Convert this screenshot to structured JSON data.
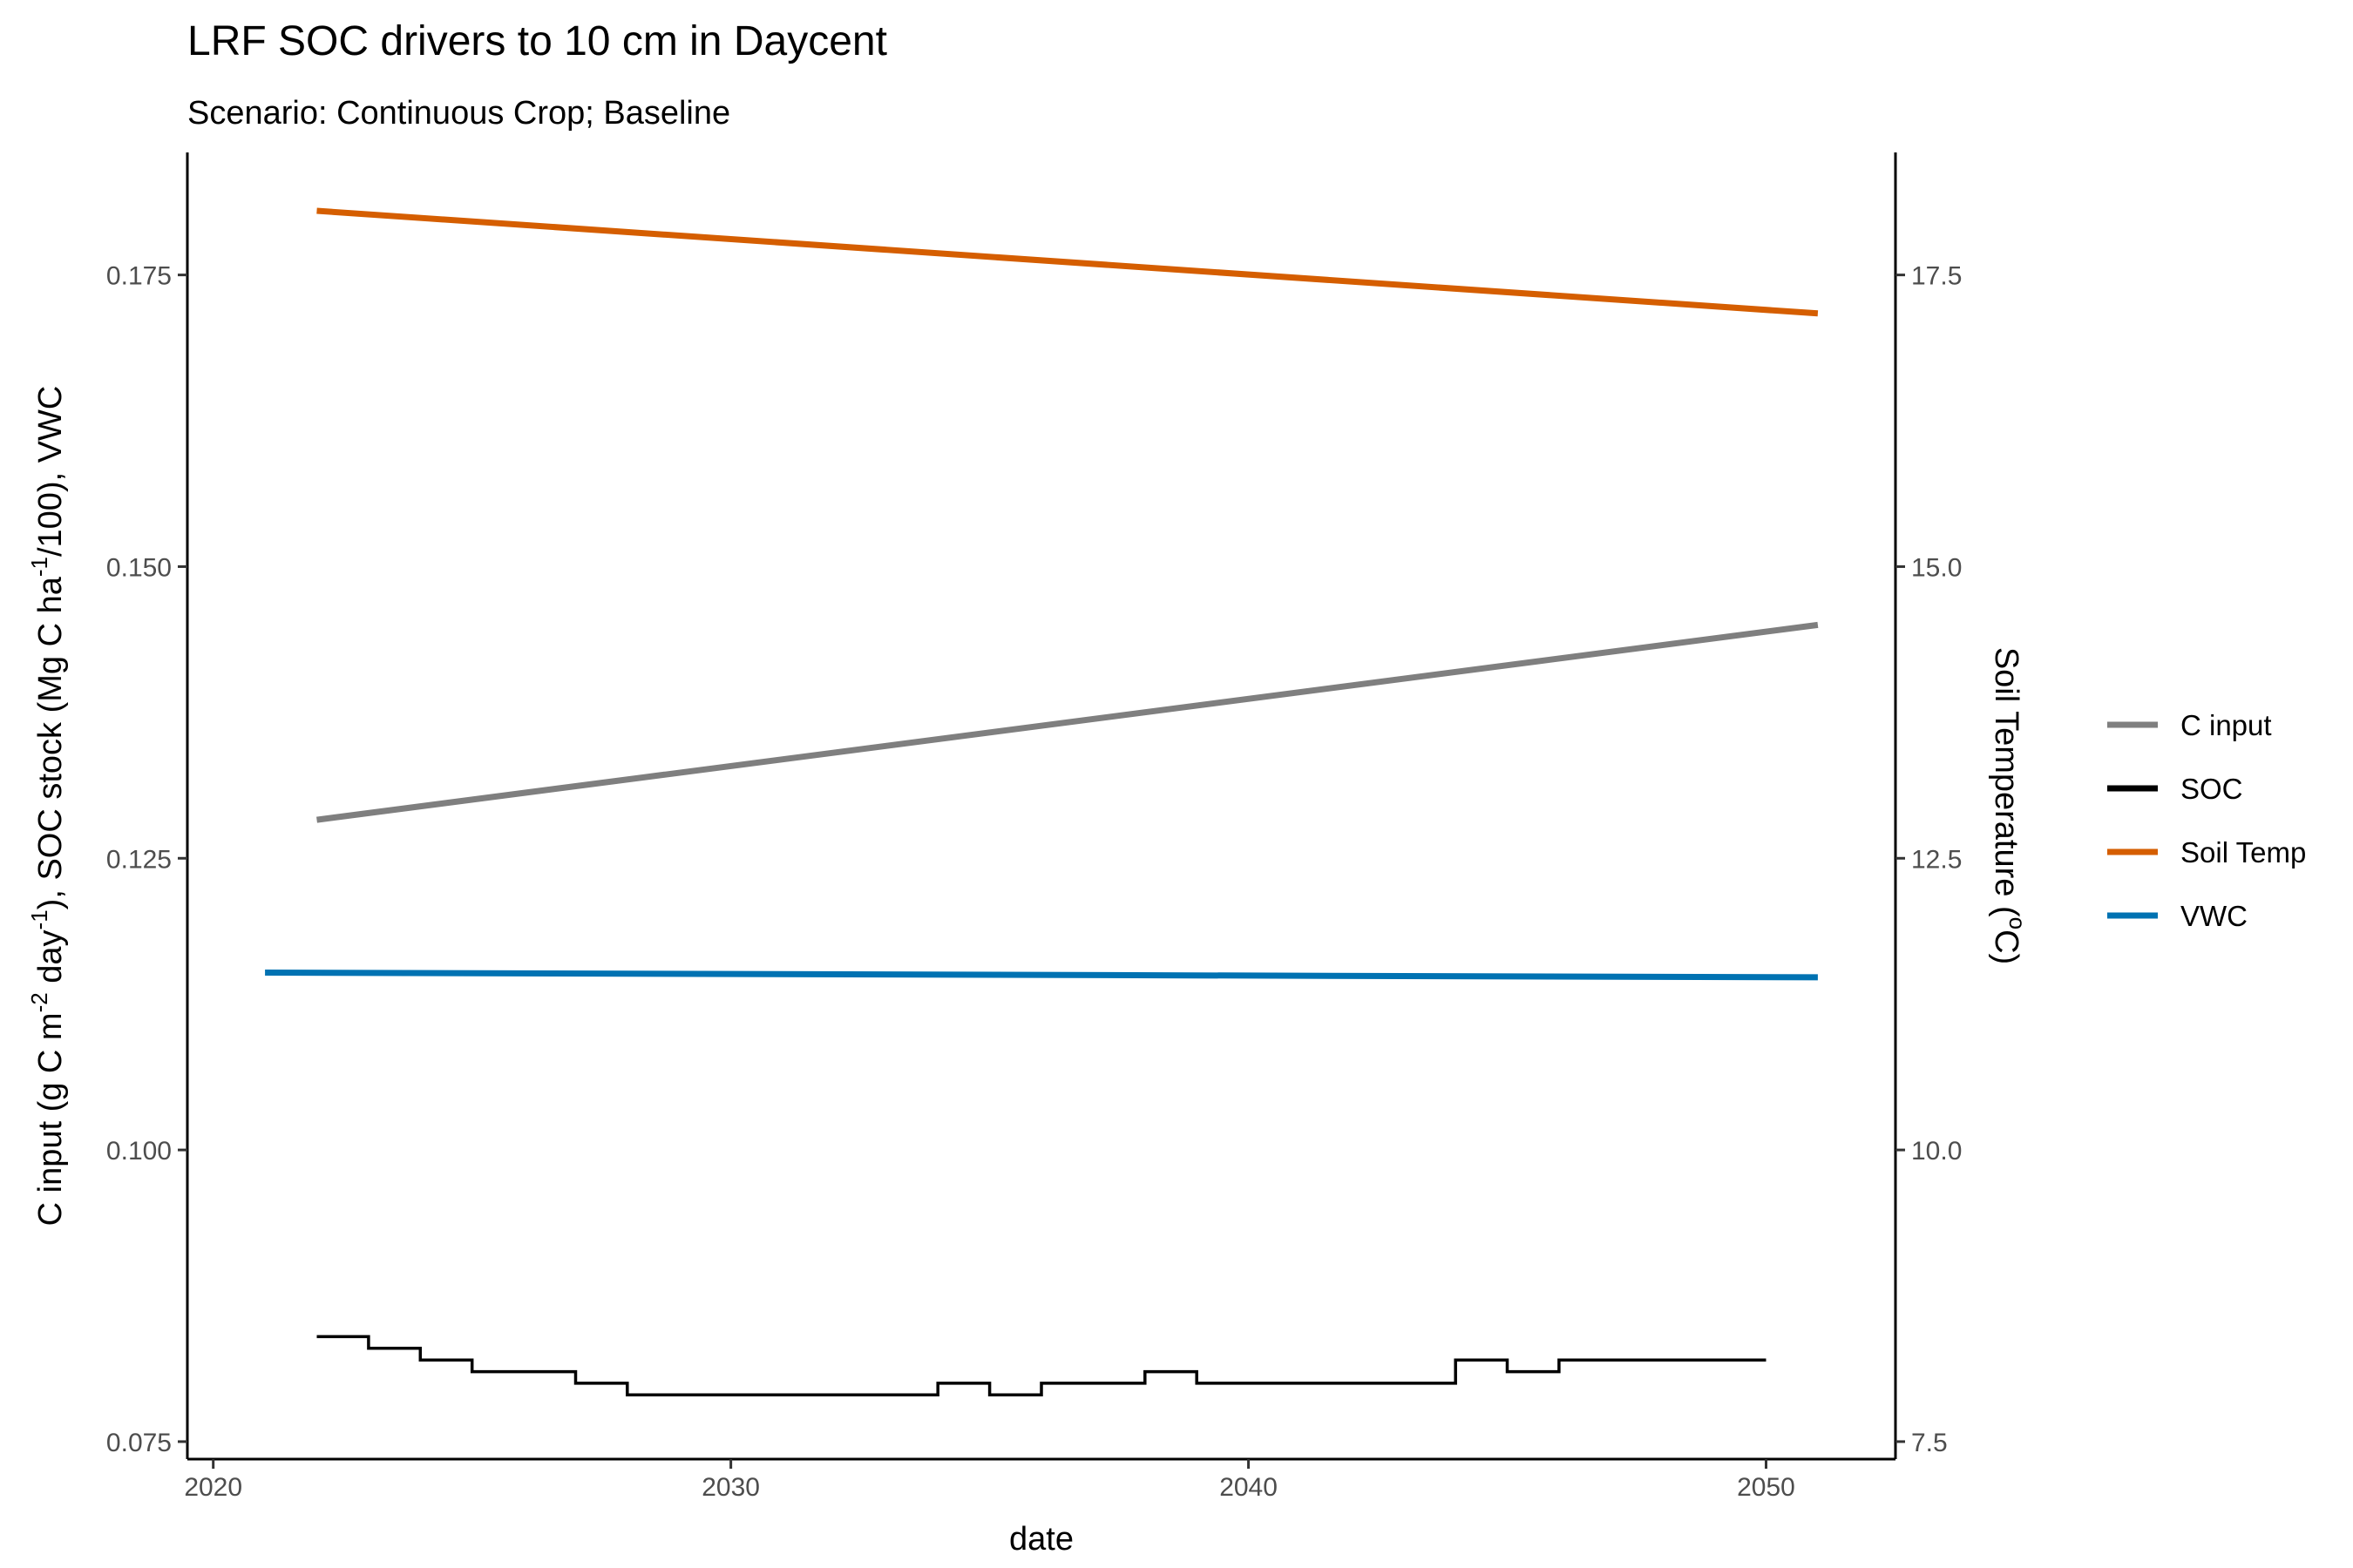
{
  "chart_data": {
    "type": "line",
    "title": "LRF SOC drivers to 10 cm in Daycent",
    "subtitle": "Scenario: Continuous Crop; Baseline",
    "xlabel": "date",
    "ylabel_left": {
      "t1": "C input (g C m",
      "s1": "-2",
      "t2": " day",
      "s2": "-1",
      "t3": "), SOC stock (Mg C ha",
      "s3": "-1",
      "t4": "/100), VWC"
    },
    "ylabel_right": {
      "t1": "Soil Temperature (",
      "s1": "o",
      "t2": "C)"
    },
    "xlim": [
      2019.5,
      2052.5
    ],
    "ylim_left": [
      0.0735,
      0.1855
    ],
    "ylim_right": [
      7.35,
      18.55
    ],
    "x_ticks": [
      {
        "value": 2020,
        "label": "2020"
      },
      {
        "value": 2030,
        "label": "2030"
      },
      {
        "value": 2040,
        "label": "2040"
      },
      {
        "value": 2050,
        "label": "2050"
      }
    ],
    "y_ticks_left": [
      {
        "value": 0.075,
        "label": "0.075"
      },
      {
        "value": 0.1,
        "label": "0.100"
      },
      {
        "value": 0.125,
        "label": "0.125"
      },
      {
        "value": 0.15,
        "label": "0.150"
      },
      {
        "value": 0.175,
        "label": "0.175"
      }
    ],
    "y_ticks_right": [
      {
        "value": 7.5,
        "label": "7.5"
      },
      {
        "value": 10.0,
        "label": "10.0"
      },
      {
        "value": 12.5,
        "label": "12.5"
      },
      {
        "value": 15.0,
        "label": "15.0"
      },
      {
        "value": 17.5,
        "label": "17.5"
      }
    ],
    "grid": false,
    "legend_position": "right",
    "series": [
      {
        "name": "C input",
        "color": "#7f7f7f",
        "axis": "left",
        "style": "line",
        "x": [
          2022,
          2051
        ],
        "y": [
          0.1283,
          0.145
        ]
      },
      {
        "name": "SOC",
        "color": "#000000",
        "axis": "left",
        "style": "step",
        "x": [
          2022,
          2023,
          2024,
          2025,
          2027,
          2028,
          2034,
          2035,
          2036,
          2038,
          2039,
          2044,
          2045,
          2046,
          2050
        ],
        "y": [
          0.084,
          0.083,
          0.082,
          0.081,
          0.08,
          0.079,
          0.08,
          0.079,
          0.08,
          0.081,
          0.08,
          0.082,
          0.081,
          0.082,
          0.082
        ]
      },
      {
        "name": "Soil Temp",
        "color": "#d55e00",
        "axis": "right",
        "style": "line",
        "x": [
          2022,
          2051
        ],
        "y": [
          18.05,
          17.17
        ]
      },
      {
        "name": "VWC",
        "color": "#0072b2",
        "axis": "left",
        "style": "line",
        "x": [
          2021,
          2051
        ],
        "y": [
          0.1152,
          0.1148
        ]
      }
    ]
  }
}
